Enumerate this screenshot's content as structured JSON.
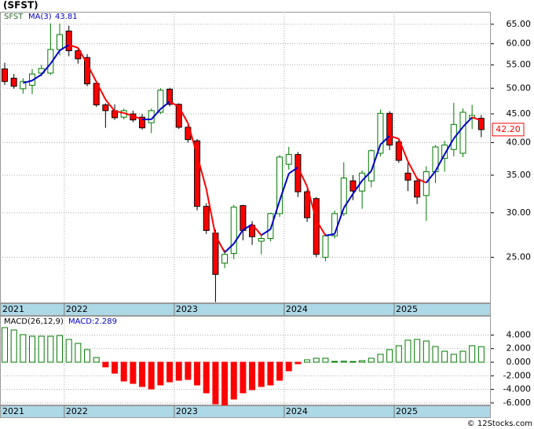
{
  "chart_data": [
    {
      "type": "candlestick",
      "title": "(SFST)",
      "label": "SFST",
      "start_label": "2021",
      "categories": [
        null,
        null,
        null,
        null,
        null,
        null,
        null,
        "2022",
        null,
        null,
        null,
        null,
        null,
        null,
        null,
        null,
        null,
        null,
        null,
        "2023",
        null,
        null,
        null,
        null,
        null,
        null,
        null,
        null,
        null,
        null,
        null,
        "2024",
        null,
        null,
        null,
        null,
        null,
        null,
        null,
        null,
        null,
        null,
        null,
        "2025",
        null,
        null,
        null,
        null,
        null,
        null,
        null,
        null,
        null
      ],
      "open": [
        54.1,
        52.1,
        49.9,
        50.6,
        53.2,
        53.2,
        58.6,
        63.2,
        58.3,
        56.7,
        51.0,
        46.7,
        45.6,
        44.4,
        45.0,
        44.4,
        43.4,
        45.3,
        49.8,
        46.8,
        42.6,
        40.3,
        30.8,
        27.6,
        24.4,
        25.4,
        30.9,
        28.5,
        26.7,
        27.0,
        29.9,
        36.6,
        38.1,
        32.7,
        31.8,
        25.0,
        27.3,
        29.9,
        34.2,
        32.8,
        34.2,
        38.3,
        45.1,
        40.1,
        35.3,
        34.2,
        32.2,
        35.5,
        37.5,
        38.9,
        38.3,
        44.2,
        44.2
      ],
      "high": [
        55.5,
        53.0,
        52.1,
        54.1,
        55.0,
        65.2,
        65.2,
        64.6,
        59.0,
        57.5,
        51.5,
        47.0,
        46.8,
        46.0,
        45.6,
        45.0,
        46.0,
        50.0,
        50.1,
        47.0,
        43.0,
        40.6,
        31.2,
        28.0,
        25.8,
        31.0,
        31.0,
        29.0,
        27.5,
        30.0,
        38.0,
        39.3,
        38.5,
        33.0,
        32.0,
        27.5,
        30.3,
        36.9,
        35.0,
        35.7,
        38.9,
        45.8,
        45.5,
        40.5,
        37.0,
        34.5,
        36.3,
        39.6,
        40.3,
        47.1,
        46.0,
        46.7,
        44.8
      ],
      "low": [
        50.7,
        49.9,
        48.9,
        48.8,
        52.5,
        52.8,
        57.2,
        57.0,
        55.3,
        50.4,
        46.3,
        42.5,
        43.9,
        44.0,
        43.5,
        42.2,
        41.6,
        45.0,
        46.4,
        42.3,
        40.0,
        30.3,
        27.5,
        20.8,
        23.9,
        24.8,
        26.8,
        26.3,
        25.3,
        26.7,
        29.5,
        35.8,
        32.0,
        28.9,
        25.0,
        24.6,
        27.0,
        29.6,
        31.6,
        30.5,
        33.3,
        37.8,
        38.8,
        36.8,
        32.8,
        31.1,
        29.0,
        33.9,
        35.5,
        37.8,
        37.7,
        42.3,
        40.9
      ],
      "close": [
        51.4,
        50.4,
        51.4,
        53.0,
        54.2,
        58.6,
        62.3,
        58.3,
        56.4,
        50.9,
        46.7,
        45.6,
        44.3,
        45.6,
        43.9,
        42.5,
        45.6,
        49.6,
        46.8,
        42.6,
        40.5,
        30.8,
        27.9,
        23.3,
        25.3,
        30.7,
        27.9,
        27.2,
        27.0,
        29.9,
        37.7,
        38.1,
        32.7,
        29.4,
        25.3,
        27.3,
        29.9,
        34.6,
        32.8,
        35.3,
        38.7,
        45.1,
        39.6,
        37.2,
        34.3,
        32.0,
        35.5,
        39.3,
        39.6,
        43.1,
        45.3,
        44.7,
        42.2
      ],
      "up_color": "#007a00",
      "down_color": "#ff0000",
      "ma": {
        "name": "MA(3)",
        "value_label": "43.81",
        "up_color": "#0000cc",
        "down_color": "#ff0000",
        "values": [
          null,
          null,
          51.07,
          51.6,
          52.87,
          55.27,
          58.37,
          59.73,
          59.0,
          55.2,
          51.33,
          47.73,
          45.53,
          45.17,
          44.6,
          44.0,
          44.0,
          45.9,
          47.33,
          46.33,
          43.3,
          37.97,
          33.07,
          27.33,
          25.5,
          26.43,
          27.97,
          28.6,
          27.37,
          28.03,
          31.53,
          35.23,
          36.17,
          33.4,
          29.13,
          27.33,
          27.5,
          30.6,
          32.43,
          34.23,
          35.6,
          39.7,
          41.13,
          40.63,
          37.03,
          34.5,
          33.93,
          35.6,
          38.13,
          40.67,
          42.67,
          44.37,
          43.81
        ]
      },
      "last": {
        "value": 42.2,
        "label": "42.20"
      },
      "ylim": [
        20.7,
        68.4
      ],
      "log_scale": true,
      "grid": true,
      "yticks": [
        {
          "value": 25,
          "label": "25.00"
        },
        {
          "value": 30,
          "label": "30.00"
        },
        {
          "value": 35,
          "label": "35.00"
        },
        {
          "value": 40,
          "label": "40.00"
        },
        {
          "value": 45,
          "label": "45.00"
        },
        {
          "value": 50,
          "label": "50.00"
        },
        {
          "value": 55,
          "label": "55.00"
        },
        {
          "value": 60,
          "label": "60.00"
        },
        {
          "value": 65,
          "label": "65.00"
        }
      ]
    },
    {
      "type": "bar",
      "label": "MACD(26,12,9)",
      "last_label": "MACD:2.289",
      "start_label": "2021",
      "categories": [
        null,
        null,
        null,
        null,
        null,
        null,
        null,
        "2022",
        null,
        null,
        null,
        null,
        null,
        null,
        null,
        null,
        null,
        null,
        null,
        "2023",
        null,
        null,
        null,
        null,
        null,
        null,
        null,
        null,
        null,
        null,
        null,
        "2024",
        null,
        null,
        null,
        null,
        null,
        null,
        null,
        null,
        null,
        null,
        null,
        "2025",
        null,
        null,
        null,
        null,
        null,
        null,
        null,
        null,
        null
      ],
      "values": [
        5.09,
        4.74,
        4.05,
        3.82,
        3.82,
        3.82,
        3.93,
        3.35,
        2.77,
        1.85,
        0.69,
        -0.69,
        -1.62,
        -2.77,
        -3.12,
        -3.58,
        -3.93,
        -3.35,
        -2.89,
        -2.66,
        -2.54,
        -3.35,
        -4.51,
        -6.13,
        -6.3,
        -5.43,
        -4.51,
        -4.05,
        -3.58,
        -3.35,
        -2.66,
        -1.27,
        -0.23,
        0.35,
        0.58,
        0.58,
        0.12,
        0.15,
        0.1,
        0.23,
        0.58,
        1.16,
        1.85,
        2.43,
        3.24,
        3.35,
        3.12,
        2.31,
        1.62,
        1.16,
        1.62,
        2.43,
        2.289
      ],
      "up_color": "#007a00",
      "down_color": "#ff0000",
      "ylim": [
        -6.36,
        6.82
      ],
      "grid": true,
      "yticks": [
        {
          "value": -6,
          "label": "-6.000"
        },
        {
          "value": -4,
          "label": "-4.000"
        },
        {
          "value": -2,
          "label": "-2.000"
        },
        {
          "value": 0,
          "label": "0.000"
        },
        {
          "value": 2,
          "label": "2.000"
        },
        {
          "value": 4,
          "label": "4.000"
        }
      ]
    }
  ],
  "footer": "© 12Stocks.com"
}
